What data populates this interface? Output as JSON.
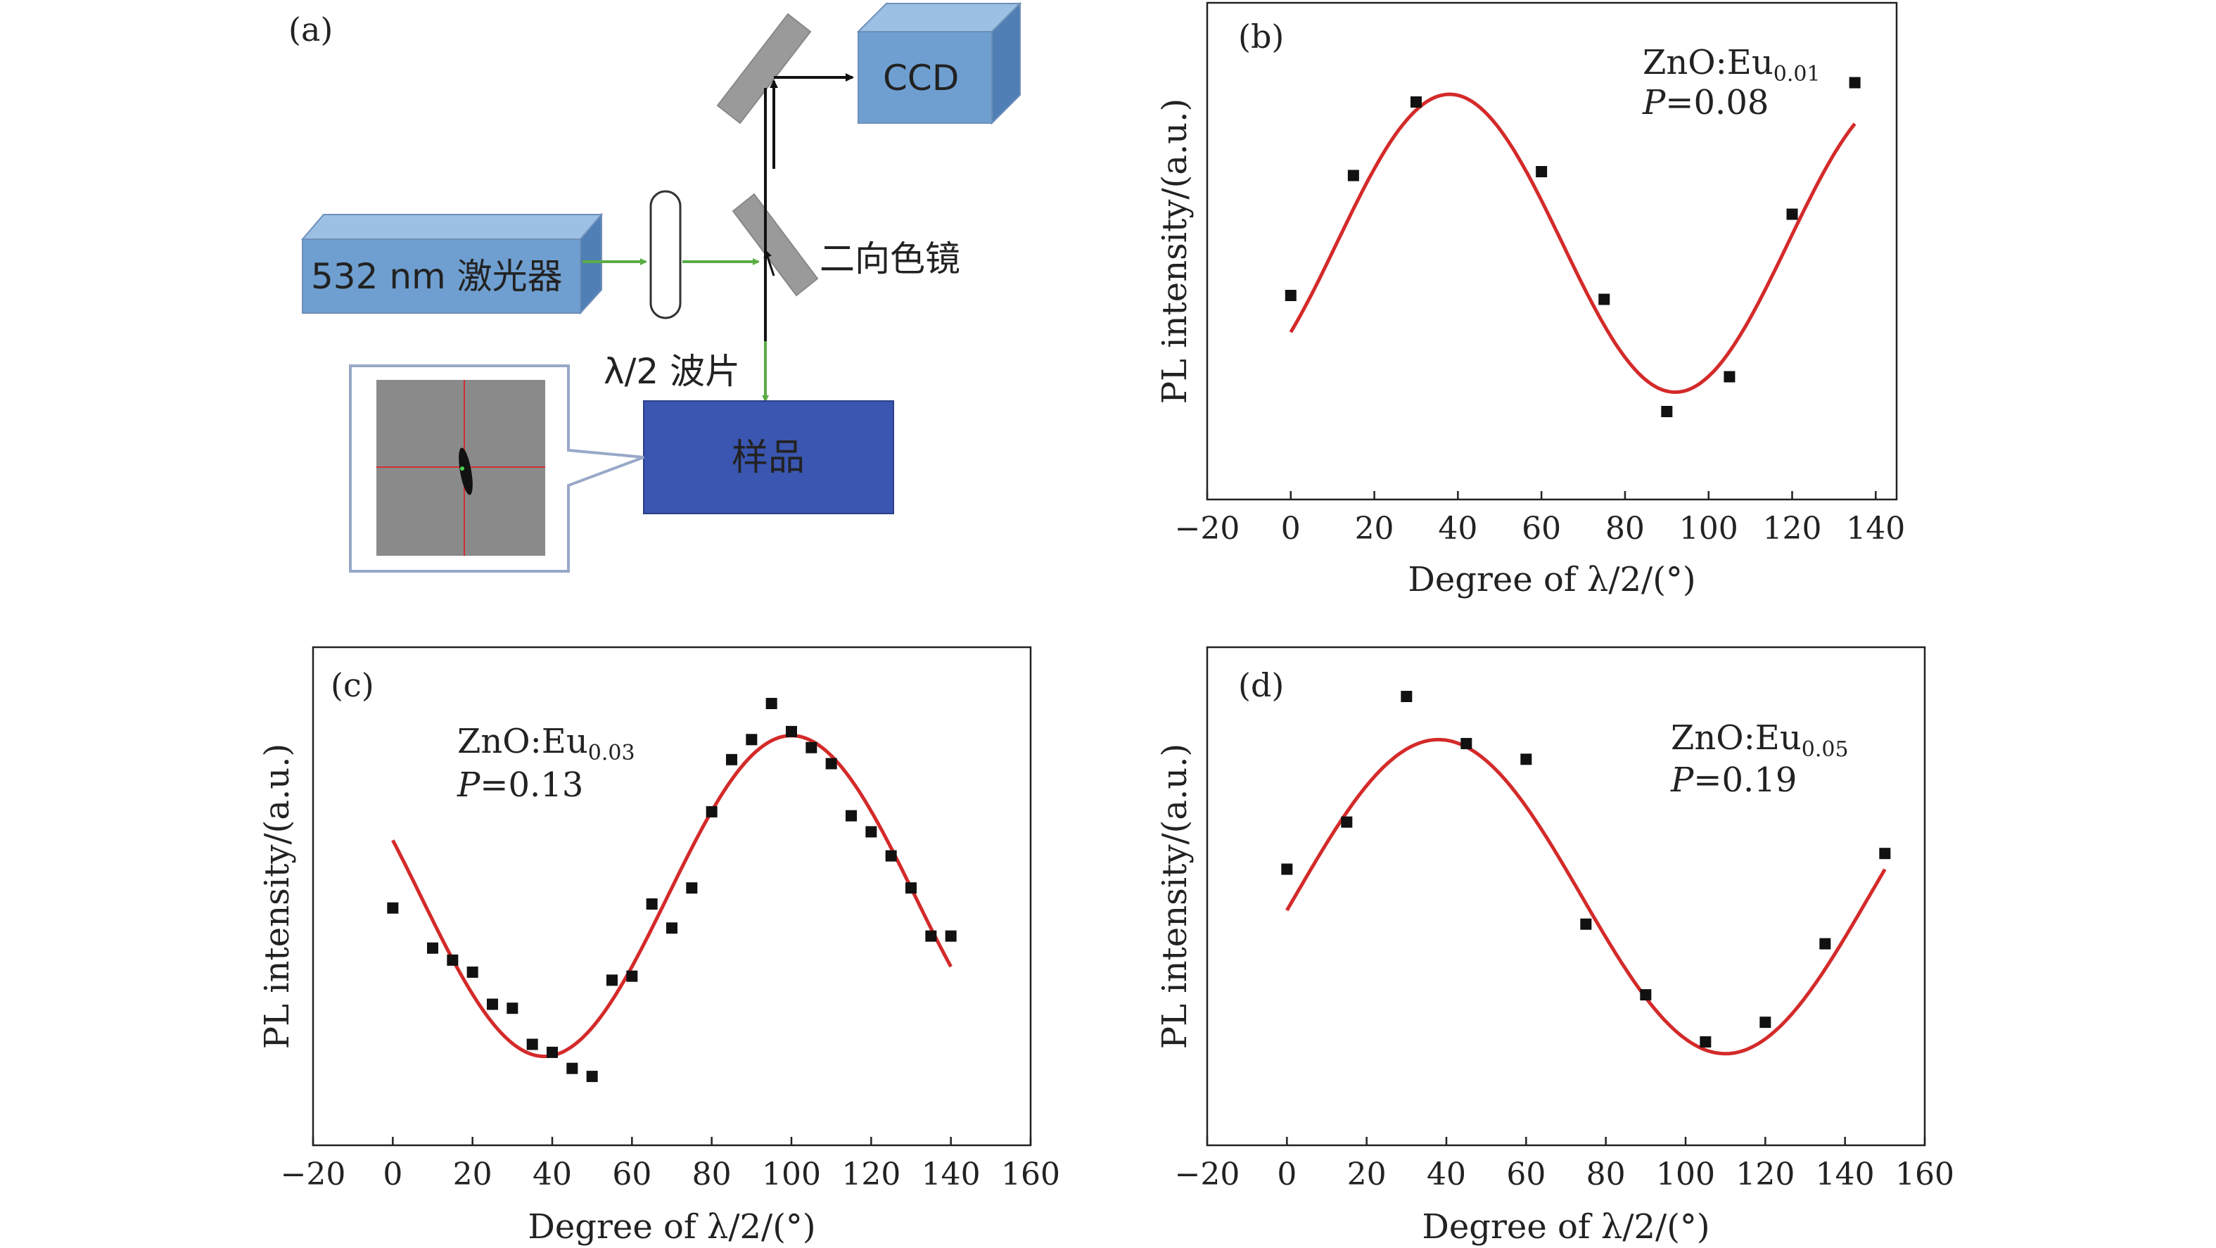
{
  "schematic": {
    "panel_label": "(a)",
    "laser_label": "532 nm 激光器",
    "ccd_label": "CCD",
    "dichroic_label": "二向色镜",
    "waveplate_label": "λ/2 波片",
    "sample_label": "样品",
    "colors": {
      "box_fill": "#6f9fd0",
      "box_side": "#4f7fb5",
      "sample_fill": "#3a56b0",
      "beam_green": "#5aac44",
      "beam_black": "#111111",
      "mirror": "#9a9a9a"
    }
  },
  "chart_data": [
    {
      "panel": "(b)",
      "type": "scatter",
      "title": "",
      "xlabel": "Degree of λ/2/(°)",
      "ylabel": "PL intensity/(a.u.)",
      "xlim": [
        -20,
        145
      ],
      "ylim": [
        0,
        1
      ],
      "xticks": [
        -20,
        0,
        20,
        40,
        60,
        80,
        100,
        120,
        140
      ],
      "annotation": {
        "material": "ZnO:Eu",
        "subscript": "0.01",
        "p_label": "P",
        "p_value": "=0.08"
      },
      "series": [
        {
          "values": [
            [
              0,
              0.4
            ],
            [
              15,
              0.71
            ],
            [
              30,
              0.9
            ],
            [
              60,
              0.72
            ],
            [
              75,
              0.39
            ],
            [
              90,
              0.1
            ],
            [
              105,
              0.19
            ],
            [
              120,
              0.61
            ],
            [
              135,
              0.95
            ]
          ]
        }
      ],
      "fit": {
        "color": "#d42a2a",
        "type": "sine",
        "center": 0.535,
        "amplitude": 0.385,
        "peak_x": 38,
        "period_deg": 108,
        "x_range": [
          0,
          135
        ]
      }
    },
    {
      "panel": "(c)",
      "type": "scatter",
      "title": "",
      "xlabel": "Degree of λ/2/(°)",
      "ylabel": "PL intensity/(a.u.)",
      "xlim": [
        -20,
        160
      ],
      "ylim": [
        0,
        1
      ],
      "xticks": [
        -20,
        0,
        20,
        40,
        60,
        80,
        100,
        120,
        140,
        160
      ],
      "annotation": {
        "material": "ZnO:Eu",
        "subscript": "0.03",
        "p_label": "P",
        "p_value": "=0.13"
      },
      "series": [
        {
          "values": [
            [
              0,
              0.49
            ],
            [
              10,
              0.39
            ],
            [
              15,
              0.36
            ],
            [
              20,
              0.33
            ],
            [
              25,
              0.25
            ],
            [
              30,
              0.24
            ],
            [
              35,
              0.15
            ],
            [
              40,
              0.13
            ],
            [
              45,
              0.09
            ],
            [
              50,
              0.07
            ],
            [
              55,
              0.31
            ],
            [
              60,
              0.32
            ],
            [
              65,
              0.5
            ],
            [
              70,
              0.44
            ],
            [
              75,
              0.54
            ],
            [
              80,
              0.73
            ],
            [
              85,
              0.86
            ],
            [
              90,
              0.91
            ],
            [
              95,
              1.0
            ],
            [
              100,
              0.93
            ],
            [
              105,
              0.89
            ],
            [
              110,
              0.85
            ],
            [
              115,
              0.72
            ],
            [
              120,
              0.68
            ],
            [
              125,
              0.62
            ],
            [
              130,
              0.54
            ],
            [
              135,
              0.42
            ],
            [
              140,
              0.42
            ]
          ]
        }
      ],
      "fit": {
        "color": "#d42a2a",
        "type": "sine",
        "center": 0.52,
        "amplitude": 0.4,
        "peak_x": 100,
        "period_deg": 124,
        "x_range": [
          0,
          140
        ]
      }
    },
    {
      "panel": "(d)",
      "type": "scatter",
      "title": "",
      "xlabel": "Degree of λ/2/(°)",
      "ylabel": "PL intensity/(a.u.)",
      "xlim": [
        -20,
        160
      ],
      "ylim": [
        0,
        1
      ],
      "xticks": [
        -20,
        0,
        20,
        40,
        60,
        80,
        100,
        120,
        140,
        160
      ],
      "annotation": {
        "material": "ZnO:Eu",
        "subscript": "0.05",
        "p_label": "P",
        "p_value": "=0.19"
      },
      "series": [
        {
          "values": [
            [
              0,
              0.56
            ],
            [
              15,
              0.68
            ],
            [
              30,
              1.0
            ],
            [
              45,
              0.88
            ],
            [
              60,
              0.84
            ],
            [
              75,
              0.42
            ],
            [
              90,
              0.24
            ],
            [
              105,
              0.12
            ],
            [
              120,
              0.17
            ],
            [
              135,
              0.37
            ],
            [
              150,
              0.6
            ]
          ]
        }
      ],
      "fit": {
        "color": "#d42a2a",
        "type": "sine",
        "center": 0.49,
        "amplitude": 0.4,
        "peak_x": 38,
        "period_deg": 144,
        "x_range": [
          0,
          150
        ]
      }
    }
  ]
}
